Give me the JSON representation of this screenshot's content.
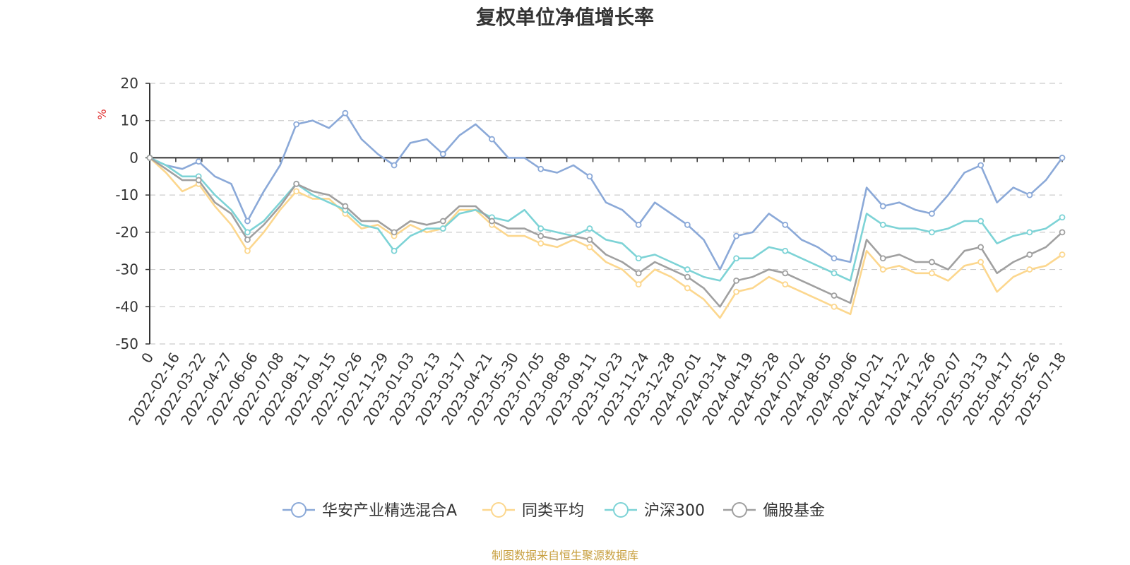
{
  "chart_data": {
    "type": "line",
    "title": "复权单位净值增长率",
    "ylabel": "%",
    "ylim": [
      -50,
      20
    ],
    "yticks": [
      20,
      10,
      0,
      -10,
      -20,
      -30,
      -40,
      -50
    ],
    "x_tick_labels": [
      "0",
      "2022-02-16",
      "2022-03-22",
      "2022-04-27",
      "2022-06-06",
      "2022-07-08",
      "2022-08-11",
      "2022-09-15",
      "2022-10-26",
      "2022-11-29",
      "2023-01-03",
      "2023-02-13",
      "2023-03-17",
      "2023-04-21",
      "2023-05-30",
      "2023-07-05",
      "2023-08-08",
      "2023-09-11",
      "2023-10-23",
      "2023-11-24",
      "2023-12-28",
      "2024-02-01",
      "2024-03-14",
      "2024-04-19",
      "2024-05-28",
      "2024-07-02",
      "2024-08-05",
      "2024-09-06",
      "2024-10-21",
      "2024-11-22",
      "2024-12-26",
      "2025-02-07",
      "2025-03-13",
      "2025-04-17",
      "2025-05-26",
      "2025-07-18"
    ],
    "grid": true,
    "legend_position": "bottom",
    "series": [
      {
        "name": "华安产业精选混合A",
        "color": "#8ba9d8",
        "values": [
          0,
          -2,
          -3,
          -1,
          -5,
          -7,
          -17,
          -9,
          -2,
          9,
          10,
          8,
          12,
          5,
          1,
          -2,
          4,
          5,
          1,
          6,
          9,
          5,
          0,
          0,
          -3,
          -4,
          -2,
          -5,
          -12,
          -14,
          -18,
          -12,
          -15,
          -18,
          -22,
          -30,
          -21,
          -20,
          -15,
          -18,
          -22,
          -24,
          -27,
          -28,
          -8,
          -13,
          -12,
          -14,
          -15,
          -10,
          -4,
          -2,
          -12,
          -8,
          -10,
          -6,
          0
        ]
      },
      {
        "name": "同类平均",
        "color": "#fcd78e",
        "values": [
          0,
          -4,
          -9,
          -7,
          -13,
          -18,
          -25,
          -20,
          -14,
          -9,
          -11,
          -11,
          -15,
          -19,
          -18,
          -21,
          -18,
          -20,
          -19,
          -14,
          -14,
          -18,
          -21,
          -21,
          -23,
          -24,
          -22,
          -24,
          -28,
          -30,
          -34,
          -30,
          -32,
          -35,
          -38,
          -43,
          -36,
          -35,
          -32,
          -34,
          -36,
          -38,
          -40,
          -42,
          -25,
          -30,
          -29,
          -31,
          -31,
          -33,
          -29,
          -28,
          -36,
          -32,
          -30,
          -29,
          -26
        ]
      },
      {
        "name": "沪深300",
        "color": "#7dd3d6",
        "values": [
          0,
          -2,
          -5,
          -5,
          -10,
          -14,
          -20,
          -17,
          -12,
          -7,
          -10,
          -12,
          -14,
          -18,
          -19,
          -25,
          -21,
          -19,
          -19,
          -15,
          -14,
          -16,
          -17,
          -14,
          -19,
          -20,
          -21,
          -19,
          -22,
          -23,
          -27,
          -26,
          -28,
          -30,
          -32,
          -33,
          -27,
          -27,
          -24,
          -25,
          -27,
          -29,
          -31,
          -33,
          -15,
          -18,
          -19,
          -19,
          -20,
          -19,
          -17,
          -17,
          -23,
          -21,
          -20,
          -19,
          -16
        ]
      },
      {
        "name": "偏股基金",
        "color": "#a0a0a0",
        "values": [
          0,
          -3,
          -6,
          -6,
          -12,
          -15,
          -22,
          -18,
          -13,
          -7,
          -9,
          -10,
          -13,
          -17,
          -17,
          -20,
          -17,
          -18,
          -17,
          -13,
          -13,
          -17,
          -19,
          -19,
          -21,
          -22,
          -21,
          -22,
          -26,
          -28,
          -31,
          -28,
          -30,
          -32,
          -35,
          -40,
          -33,
          -32,
          -30,
          -31,
          -33,
          -35,
          -37,
          -39,
          -22,
          -27,
          -26,
          -28,
          -28,
          -30,
          -25,
          -24,
          -31,
          -28,
          -26,
          -24,
          -20
        ]
      }
    ]
  },
  "footer": {
    "source": "制图数据来自恒生聚源数据库"
  }
}
